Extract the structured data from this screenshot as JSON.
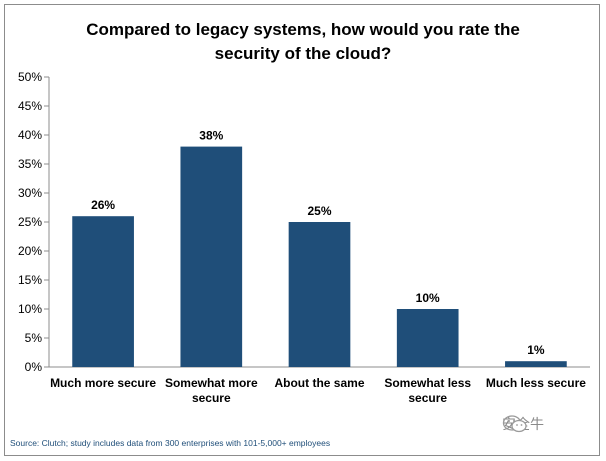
{
  "chart_data": {
    "type": "bar",
    "title_lines": [
      "Compared to legacy systems, how would you rate the",
      "security of the cloud?"
    ],
    "categories": [
      [
        "Much more secure"
      ],
      [
        "Somewhat more",
        "secure"
      ],
      [
        "About the same"
      ],
      [
        "Somewhat less",
        "secure"
      ],
      [
        "Much less secure"
      ]
    ],
    "values": [
      26,
      38,
      25,
      10,
      1
    ],
    "data_labels": [
      "26%",
      "38%",
      "25%",
      "10%",
      "1%"
    ],
    "ylim": [
      0,
      50
    ],
    "yticks": [
      0,
      5,
      10,
      15,
      20,
      25,
      30,
      35,
      40,
      45,
      50
    ],
    "ytick_labels": [
      "0%",
      "5%",
      "10%",
      "15%",
      "20%",
      "25%",
      "30%",
      "35%",
      "40%",
      "45%",
      "50%"
    ],
    "grid": false,
    "legend": "none",
    "bar_color": "#1f4e79",
    "source": "Source: Clutch; study includes data from 300 enterprises with 101-5,000+ employees"
  },
  "watermark": {
    "text": "安全牛",
    "icon": "wechat-icon"
  }
}
